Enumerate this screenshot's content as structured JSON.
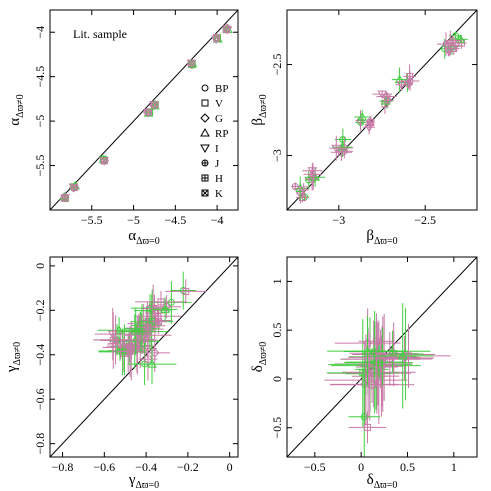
{
  "figure": {
    "colors": {
      "lit": "#c77aa7",
      "ref": "#3ecf3e",
      "identity": "#000000",
      "frame": "#000000"
    },
    "annotation": "Lit. sample",
    "legend_entries": [
      {
        "label": "BP",
        "marker": "circle"
      },
      {
        "label": "V",
        "marker": "square"
      },
      {
        "label": "G",
        "marker": "diamond"
      },
      {
        "label": "RP",
        "marker": "triangle-up"
      },
      {
        "label": "I",
        "marker": "triangle-down"
      },
      {
        "label": "J",
        "marker": "circle-plus"
      },
      {
        "label": "H",
        "marker": "square-plus"
      },
      {
        "label": "K",
        "marker": "square-cross"
      }
    ]
  },
  "chart_data": [
    {
      "type": "scatter",
      "panel": "alpha",
      "xlabel": {
        "main": "α",
        "sub": "Δϖ=0"
      },
      "ylabel": {
        "main": "α",
        "sub": "Δϖ≠0"
      },
      "xlim": [
        -6.0,
        -3.75
      ],
      "ylim": [
        -6.0,
        -3.75
      ],
      "xticks": [
        -5.5,
        -5,
        -4.5,
        -4
      ],
      "yticks": [
        -5.5,
        -5,
        -4.5,
        -4
      ],
      "xtick_labels": [
        "−5.5",
        "−5",
        "−4.5",
        "−4"
      ],
      "ytick_labels": [
        "−5.5",
        "−5",
        "−4.5",
        "−4"
      ],
      "identity_line": true,
      "show_legend": true,
      "show_annotation": true,
      "groups": [
        {
          "x": -5.82,
          "y": -5.86,
          "n": 8
        },
        {
          "x": -5.71,
          "y": -5.74,
          "n": 8
        },
        {
          "x": -5.35,
          "y": -5.44,
          "n": 8
        },
        {
          "x": -4.82,
          "y": -4.9,
          "n": 8
        },
        {
          "x": -4.75,
          "y": -4.82,
          "n": 8
        },
        {
          "x": -4.3,
          "y": -4.36,
          "n": 8
        },
        {
          "x": -4.0,
          "y": -4.07,
          "n": 8
        },
        {
          "x": -3.88,
          "y": -3.96,
          "n": 8
        }
      ]
    },
    {
      "type": "scatter",
      "panel": "beta",
      "xlabel": {
        "main": "β",
        "sub": "Δϖ=0"
      },
      "ylabel": {
        "main": "β",
        "sub": "Δϖ≠0"
      },
      "xlim": [
        -3.3,
        -2.2
      ],
      "ylim": [
        -3.3,
        -2.2
      ],
      "xticks": [
        -3,
        -2.5
      ],
      "yticks": [
        -3,
        -2.5
      ],
      "xtick_labels": [
        "−3",
        "−2.5"
      ],
      "ytick_labels": [
        "−3",
        "−2.5"
      ],
      "identity_line": true,
      "groups": [
        {
          "x": -3.22,
          "y": -3.2,
          "n": 6
        },
        {
          "x": -3.15,
          "y": -3.12,
          "n": 6
        },
        {
          "x": -2.98,
          "y": -2.95,
          "n": 6
        },
        {
          "x": -2.85,
          "y": -2.82,
          "n": 6
        },
        {
          "x": -2.72,
          "y": -2.68,
          "n": 6
        },
        {
          "x": -2.62,
          "y": -2.6,
          "n": 6
        },
        {
          "x": -2.37,
          "y": -2.42,
          "n": 6
        },
        {
          "x": -2.32,
          "y": -2.37,
          "n": 6
        }
      ]
    },
    {
      "type": "scatter",
      "panel": "gamma",
      "xlabel": {
        "main": "γ",
        "sub": "Δϖ=0"
      },
      "ylabel": {
        "main": "γ",
        "sub": "Δϖ≠0"
      },
      "xlim": [
        -0.86,
        0.04
      ],
      "ylim": [
        -0.86,
        0.04
      ],
      "xticks": [
        -0.8,
        -0.6,
        -0.4,
        -0.2,
        0
      ],
      "yticks": [
        -0.8,
        -0.6,
        -0.4,
        -0.2,
        0
      ],
      "xtick_labels": [
        "−0.8",
        "−0.6",
        "−0.4",
        "−0.2",
        "0"
      ],
      "ytick_labels": [
        "−0.8",
        "−0.6",
        "−0.4",
        "−0.2",
        "0"
      ],
      "identity_line": true,
      "groups": [
        {
          "x": -0.45,
          "y": -0.35,
          "n": 10
        },
        {
          "x": -0.4,
          "y": -0.28,
          "n": 10
        },
        {
          "x": -0.5,
          "y": -0.38,
          "n": 8
        },
        {
          "x": -0.35,
          "y": -0.22,
          "n": 8
        },
        {
          "x": -0.42,
          "y": -0.3,
          "n": 8
        },
        {
          "x": -0.55,
          "y": -0.32,
          "n": 6
        },
        {
          "x": -0.3,
          "y": -0.18,
          "n": 4
        },
        {
          "x": -0.2,
          "y": -0.09,
          "n": 2
        },
        {
          "x": -0.38,
          "y": -0.42,
          "n": 4
        }
      ]
    },
    {
      "type": "scatter",
      "panel": "delta",
      "xlabel": {
        "main": "δ",
        "sub": "Δϖ=0"
      },
      "ylabel": {
        "main": "δ",
        "sub": "Δϖ≠0"
      },
      "xlim": [
        -0.8,
        1.25
      ],
      "ylim": [
        -0.8,
        1.25
      ],
      "xticks": [
        -0.5,
        0,
        0.5,
        1
      ],
      "yticks": [
        -0.5,
        0,
        0.5,
        1
      ],
      "xtick_labels": [
        "−0.5",
        "0",
        "0.5",
        "1"
      ],
      "ytick_labels": [
        "−0.5",
        "0",
        "0.5",
        "1"
      ],
      "identity_line": true,
      "groups": [
        {
          "x": 0.15,
          "y": 0.1,
          "n": 10
        },
        {
          "x": 0.2,
          "y": 0.2,
          "n": 8
        },
        {
          "x": 0.05,
          "y": 0.0,
          "n": 8
        },
        {
          "x": 0.3,
          "y": 0.25,
          "n": 6
        },
        {
          "x": 0.45,
          "y": 0.25,
          "n": 4
        },
        {
          "x": 0.0,
          "y": -0.45,
          "n": 2
        },
        {
          "x": 0.1,
          "y": 0.35,
          "n": 4
        }
      ]
    }
  ]
}
